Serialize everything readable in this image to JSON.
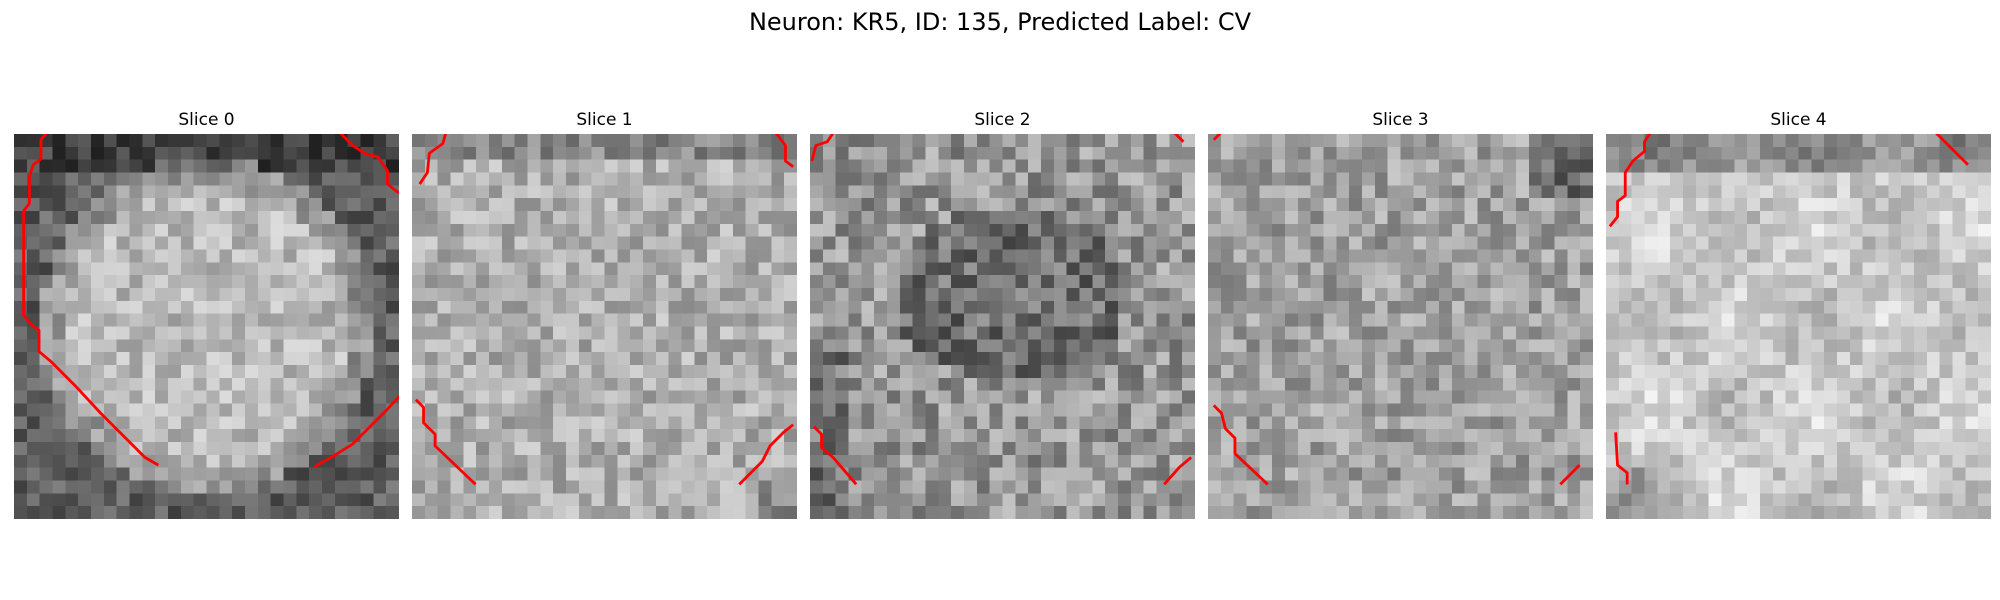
{
  "figure": {
    "title": "Neuron: KR5, ID: 135, Predicted Label: CV"
  },
  "panels": [
    {
      "title": "Slice 0",
      "style": "bright-disc",
      "seed": 11
    },
    {
      "title": "Slice 1",
      "style": "bright-uniform",
      "seed": 23
    },
    {
      "title": "Slice 2",
      "style": "dark-center",
      "seed": 37
    },
    {
      "title": "Slice 3",
      "style": "medium",
      "seed": 51
    },
    {
      "title": "Slice 4",
      "style": "bright-blotchy",
      "seed": 67
    }
  ],
  "contour_color": "#ff0000"
}
